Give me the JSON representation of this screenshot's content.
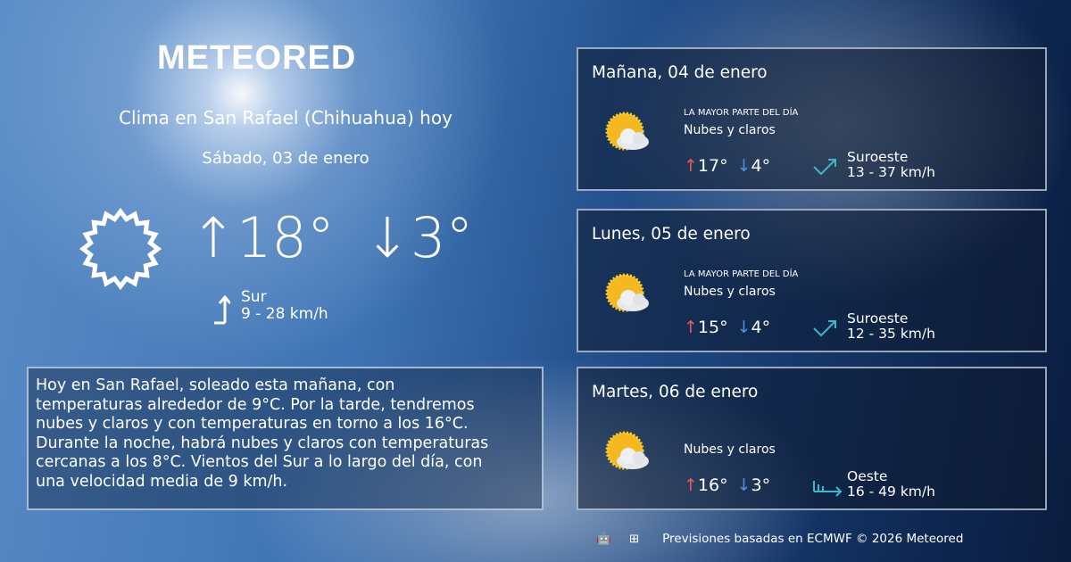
{
  "brand": "METEORED",
  "header": {
    "title": "Clima en San Rafael (Chihuahua) hoy",
    "date": "Sábado, 03 de enero"
  },
  "today": {
    "icon": "sun-icon",
    "max": "18°",
    "min": "3°",
    "wind_dir": "Sur",
    "wind_speed": "9 - 28 km/h"
  },
  "description": "Hoy en San Rafael, soleado esta mañana, con\ntemperaturas alrededor de 9°C. Por la tarde, tendremos\nnubes y claros y con temperaturas en torno a los 16°C.\nDurante la noche, habrá nubes y claros  con temperaturas\ncercanas a los 8°C. Vientos del Sur a lo largo del día, con\nuna velocidad media de 9 km/h.",
  "forecast": [
    {
      "day": "Mañana, 04 de enero",
      "period": "LA MAYOR PARTE DEL DÍA",
      "condition": "Nubes y claros",
      "max": "17°",
      "min": "4°",
      "wind_dir": "Suroeste",
      "wind_speed": "13 - 37 km/h",
      "icon": "partly-cloudy-icon"
    },
    {
      "day": "Lunes, 05 de enero",
      "period": "LA MAYOR PARTE DEL DÍA",
      "condition": "Nubes y claros",
      "max": "15°",
      "min": "4°",
      "wind_dir": "Suroeste",
      "wind_speed": "12 - 35 km/h",
      "icon": "partly-cloudy-icon"
    },
    {
      "day": "Martes, 06 de enero",
      "condition": "Nubes y claros",
      "max": "16°",
      "min": "3°",
      "wind_dir": "Oeste",
      "wind_speed": "16 - 49 km/h",
      "icon": "partly-cloudy-icon"
    }
  ],
  "footer": {
    "text": "Previsiones basadas en ECMWF © 2026 Meteored",
    "platforms": [
      "android-icon",
      "apple-icon",
      "windows-icon"
    ]
  },
  "colors": {
    "max": "#e85a5a",
    "min": "#4a90e0",
    "wind": "#3bb8c8"
  }
}
